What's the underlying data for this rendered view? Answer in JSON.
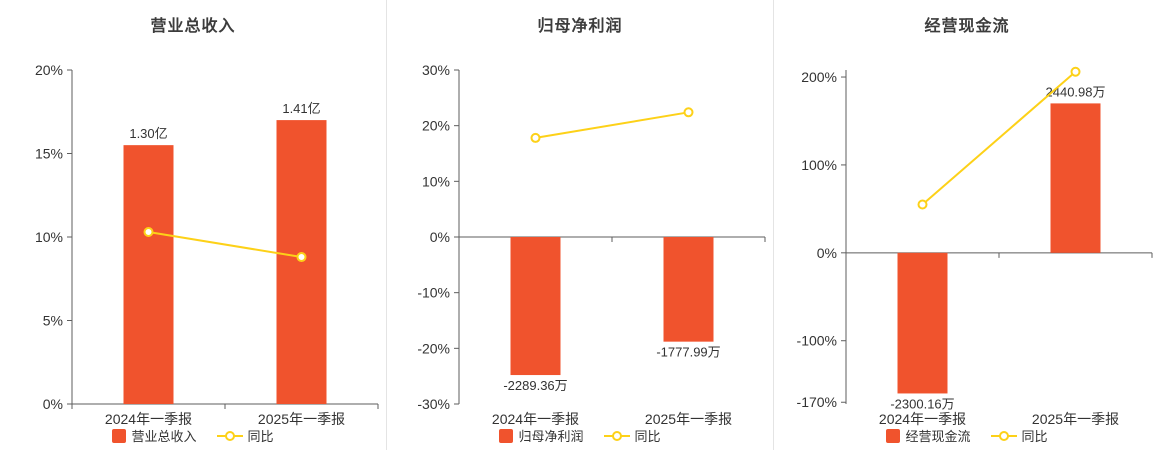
{
  "colors": {
    "bar": "#f0532d",
    "line": "#fdd118",
    "axis": "#5e5e5e",
    "text": "#333333",
    "title": "#3c3c3c",
    "divider": "#e4e4e4",
    "background": "#ffffff"
  },
  "chart_data": [
    {
      "type": "bar",
      "title": "营业总收入",
      "categories": [
        "2024年一季报",
        "2025年一季报"
      ],
      "y_axis": {
        "min": 0,
        "max": 20,
        "ticks": [
          0,
          5,
          10,
          15,
          20
        ],
        "tick_labels": [
          "0%",
          "5%",
          "10%",
          "15%",
          "20%"
        ]
      },
      "series": [
        {
          "name": "营业总收入",
          "type": "bar",
          "values": [
            15.5,
            17.0
          ],
          "data_labels": [
            "1.30亿",
            "1.41亿"
          ]
        },
        {
          "name": "同比",
          "type": "line",
          "values": [
            10.3,
            8.8
          ]
        }
      ],
      "legend_position": "bottom",
      "grid": false
    },
    {
      "type": "bar",
      "title": "归母净利润",
      "categories": [
        "2024年一季报",
        "2025年一季报"
      ],
      "y_axis": {
        "min": -30,
        "max": 30,
        "ticks": [
          30,
          20,
          10,
          0,
          -10,
          -20,
          -30
        ],
        "tick_labels": [
          "30%",
          "20%",
          "10%",
          "0%",
          "-10%",
          "-20%",
          "-30%"
        ]
      },
      "series": [
        {
          "name": "归母净利润",
          "type": "bar",
          "values": [
            -24.8,
            -18.8
          ],
          "data_labels": [
            "-2289.36万",
            "-1777.99万"
          ]
        },
        {
          "name": "同比",
          "type": "line",
          "values": [
            17.8,
            22.4
          ]
        }
      ],
      "legend_position": "bottom",
      "grid": false
    },
    {
      "type": "bar",
      "title": "经营现金流",
      "categories": [
        "2024年一季报",
        "2025年一季报"
      ],
      "y_axis": {
        "min": -172,
        "max": 208,
        "ticks": [
          200,
          100,
          0,
          -100,
          -170
        ],
        "tick_labels": [
          "200%",
          "100%",
          "0%",
          "-100%",
          "-170%"
        ]
      },
      "series": [
        {
          "name": "经营现金流",
          "type": "bar",
          "values": [
            -160,
            170
          ],
          "data_labels": [
            "-2300.16万",
            "2440.98万"
          ]
        },
        {
          "name": "同比",
          "type": "line",
          "values": [
            55,
            206
          ]
        }
      ],
      "legend_position": "bottom",
      "grid": false
    }
  ]
}
